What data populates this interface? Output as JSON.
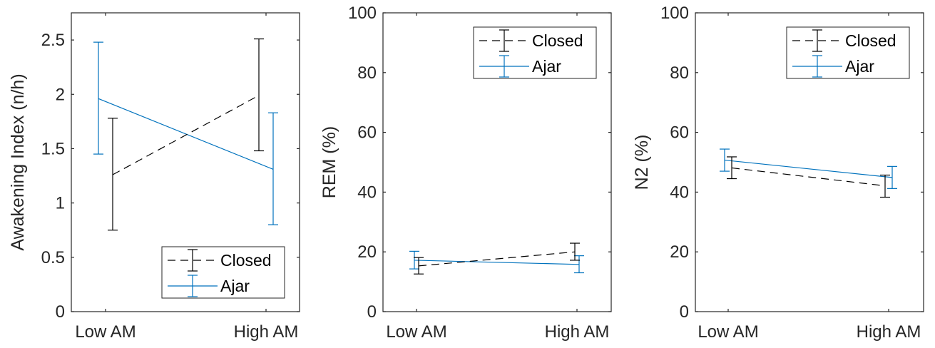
{
  "colors": {
    "Closed": "#000000",
    "Ajar": "#0072BD",
    "axis": "#262626"
  },
  "chart_data": [
    {
      "type": "line",
      "categories": [
        "Low AM",
        "High AM"
      ],
      "ylabel": "Awakening Index (n/h)",
      "ylim": [
        0,
        2.75
      ],
      "yticks": [
        0,
        0.5,
        1,
        1.5,
        2,
        2.5
      ],
      "ytick_labels": [
        "0",
        "0.5",
        "1",
        "1.5",
        "2",
        "2.5"
      ],
      "legend_position": "bottom-right",
      "series": [
        {
          "name": "Closed",
          "style": "dashed",
          "values": [
            1.26,
            1.99
          ],
          "lower": [
            0.75,
            1.48
          ],
          "upper": [
            1.78,
            2.51
          ]
        },
        {
          "name": "Ajar",
          "style": "solid",
          "values": [
            1.96,
            1.31
          ],
          "lower": [
            1.45,
            0.8
          ],
          "upper": [
            2.48,
            1.83
          ]
        }
      ]
    },
    {
      "type": "line",
      "categories": [
        "Low AM",
        "High AM"
      ],
      "ylabel": "REM (%)",
      "ylim": [
        0,
        100
      ],
      "yticks": [
        0,
        20,
        40,
        60,
        80,
        100
      ],
      "ytick_labels": [
        "0",
        "20",
        "40",
        "60",
        "80",
        "100"
      ],
      "legend_position": "top-right",
      "series": [
        {
          "name": "Closed",
          "style": "dashed",
          "values": [
            15.3,
            20.0
          ],
          "lower": [
            12.6,
            17.2
          ],
          "upper": [
            18.1,
            22.9
          ]
        },
        {
          "name": "Ajar",
          "style": "solid",
          "values": [
            17.2,
            15.8
          ],
          "lower": [
            14.3,
            13.0
          ],
          "upper": [
            20.2,
            18.7
          ]
        }
      ]
    },
    {
      "type": "line",
      "categories": [
        "Low AM",
        "High AM"
      ],
      "ylabel": "N2 (%)",
      "ylim": [
        0,
        100
      ],
      "yticks": [
        0,
        20,
        40,
        60,
        80,
        100
      ],
      "ytick_labels": [
        "0",
        "20",
        "40",
        "60",
        "80",
        "100"
      ],
      "legend_position": "top-right",
      "series": [
        {
          "name": "Closed",
          "style": "dashed",
          "values": [
            48.1,
            42.1
          ],
          "lower": [
            44.5,
            38.3
          ],
          "upper": [
            51.8,
            45.7
          ]
        },
        {
          "name": "Ajar",
          "style": "solid",
          "values": [
            50.7,
            44.9
          ],
          "lower": [
            47.0,
            41.2
          ],
          "upper": [
            54.4,
            48.6
          ]
        }
      ]
    }
  ]
}
